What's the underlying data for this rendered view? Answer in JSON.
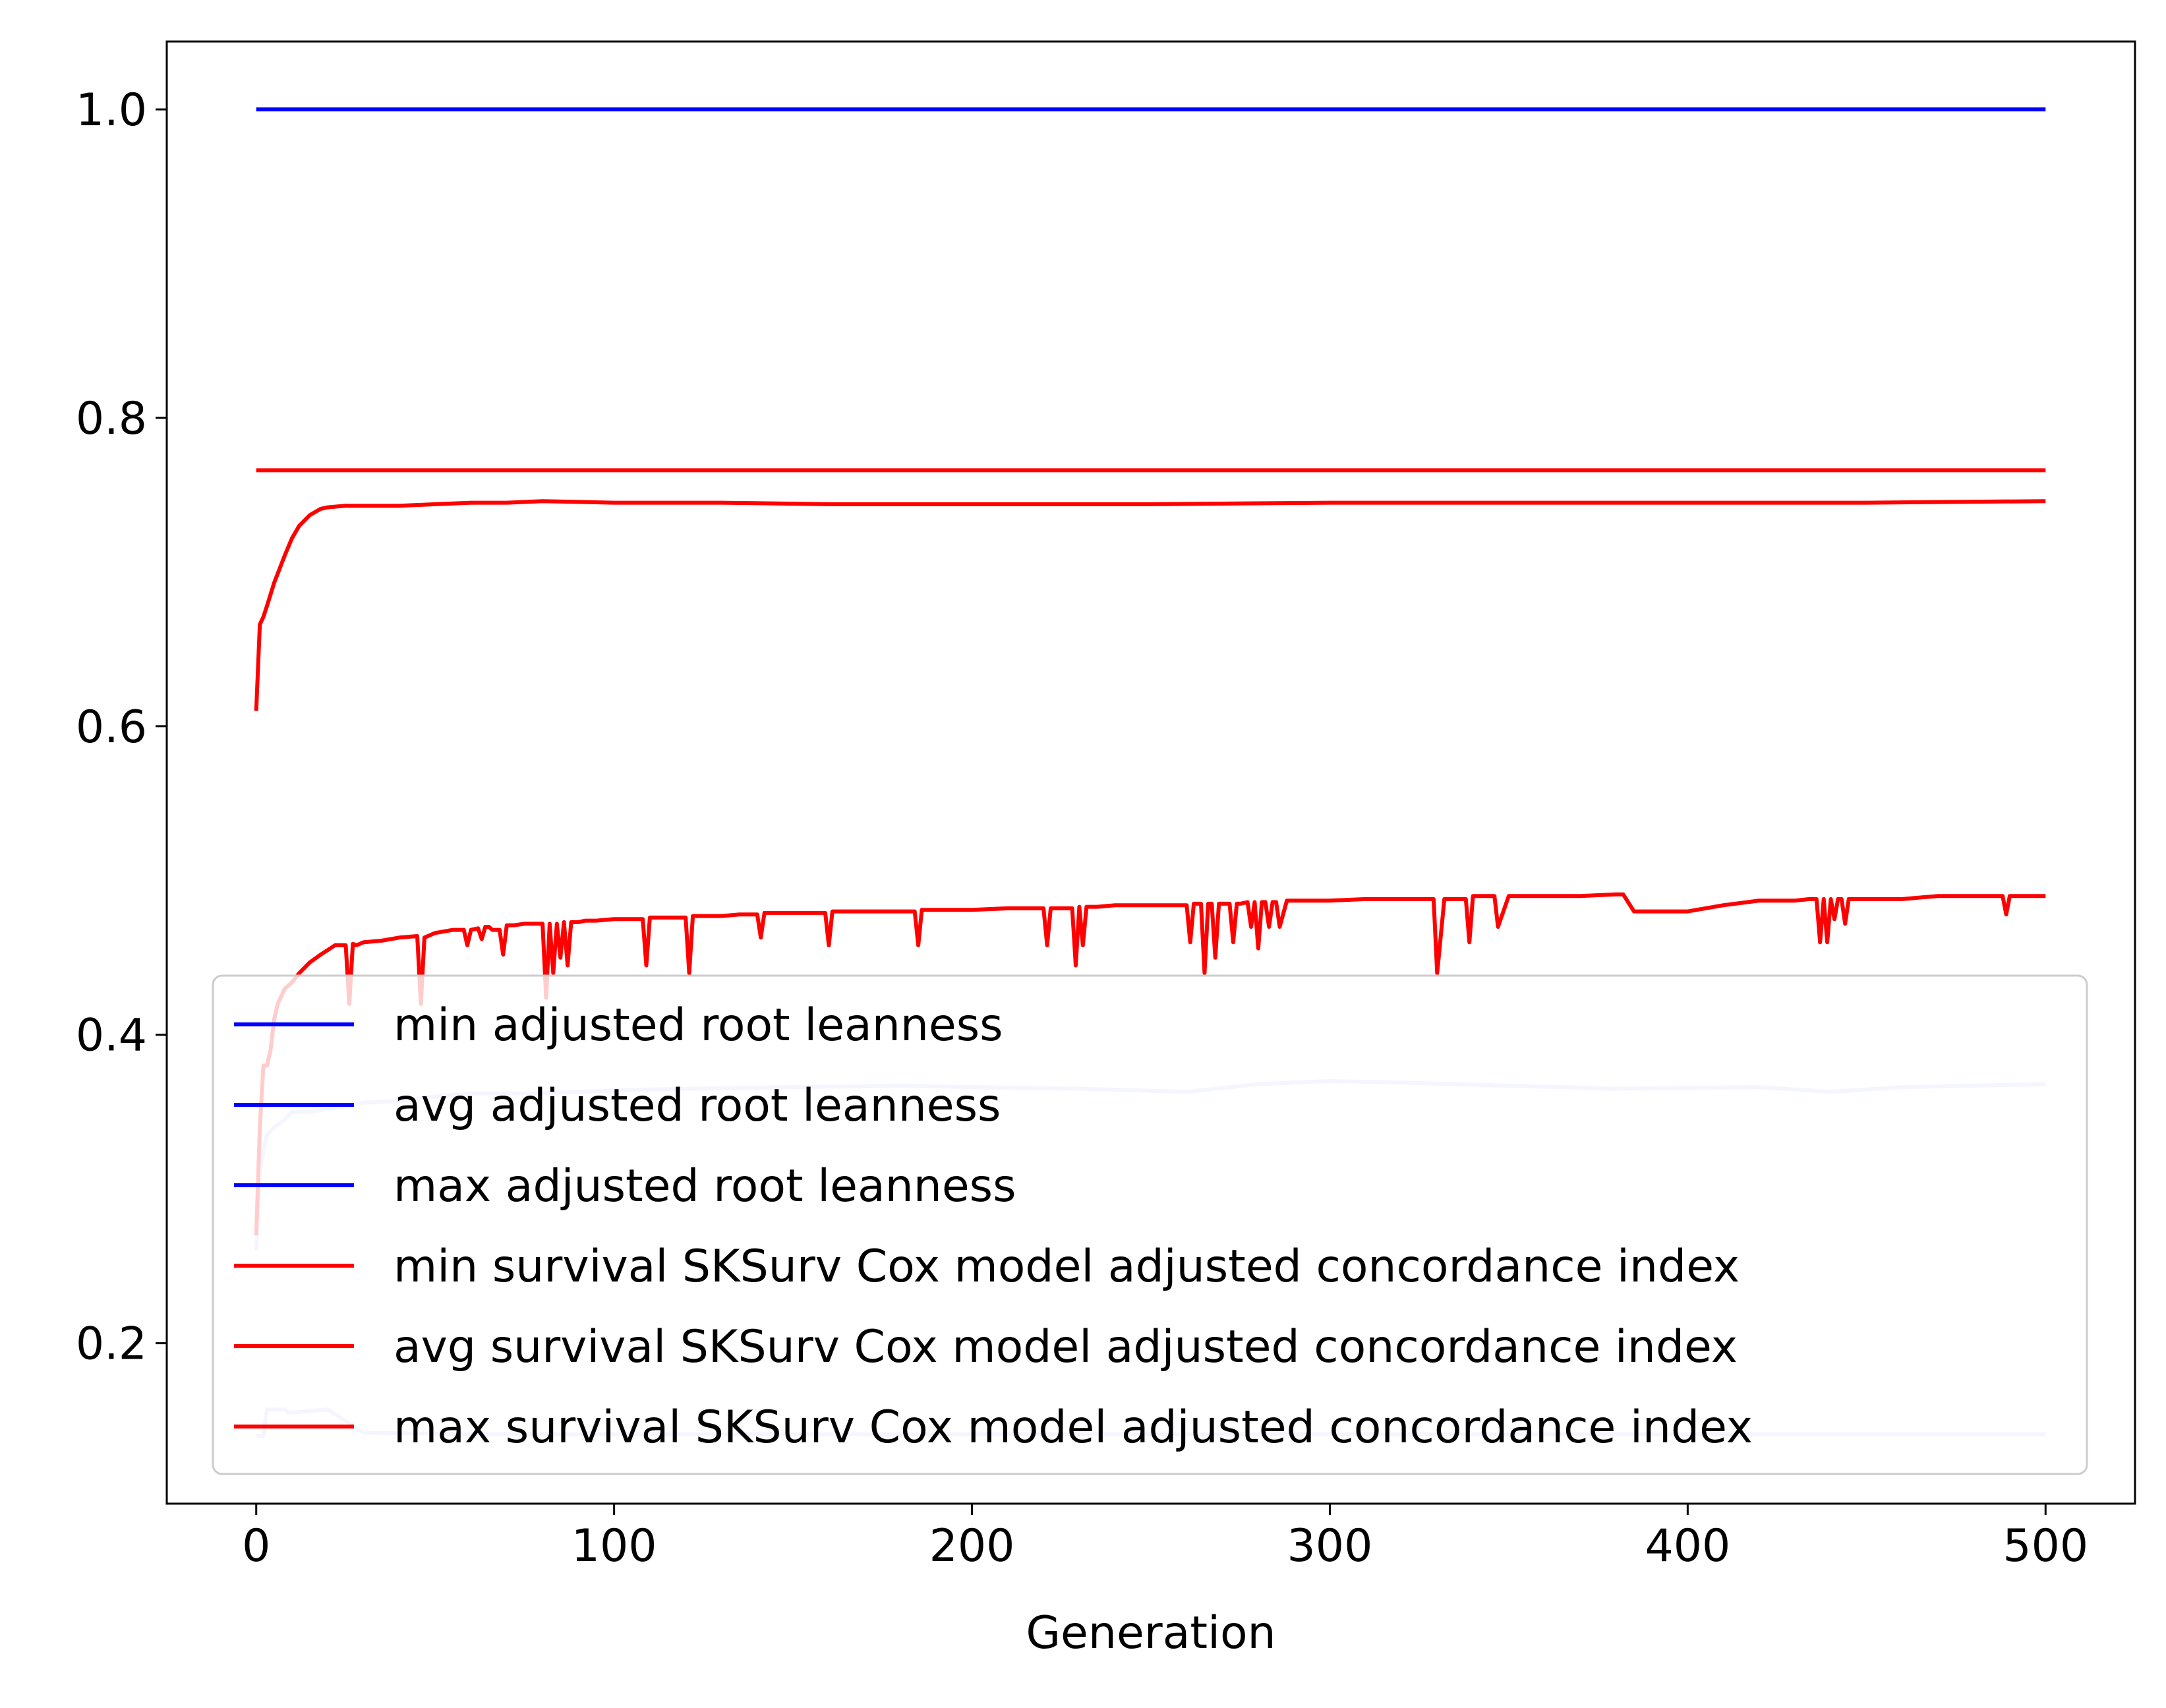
{
  "chart_data": {
    "type": "line",
    "title": "",
    "xlabel": "Generation",
    "ylabel": "",
    "xlim": [
      -25,
      525
    ],
    "ylim": [
      0.096,
      1.044
    ],
    "grid": false,
    "legend_position": "lower-left",
    "x_ticks": [
      0,
      100,
      200,
      300,
      400,
      500
    ],
    "x_tick_labels": [
      "0",
      "100",
      "200",
      "300",
      "400",
      "500"
    ],
    "y_ticks": [
      0.2,
      0.4,
      0.6,
      0.8,
      1.0
    ],
    "y_tick_labels": [
      "0.2",
      "0.4",
      "0.6",
      "0.8",
      "1.0"
    ],
    "series": [
      {
        "name": "min adjusted root leanness",
        "color": "#0000ff",
        "opacity": 0.2,
        "x": [
          0,
          2,
          3,
          8,
          9,
          20,
          30,
          60,
          100,
          200,
          300,
          400,
          500
        ],
        "y": [
          0.14,
          0.14,
          0.157,
          0.157,
          0.155,
          0.157,
          0.142,
          0.141,
          0.141,
          0.141,
          0.141,
          0.141,
          0.141
        ]
      },
      {
        "name": "avg adjusted root leanness",
        "color": "#0000ff",
        "opacity": 0.2,
        "x": [
          0,
          1,
          2,
          3,
          5,
          8,
          10,
          15,
          20,
          25,
          30,
          40,
          50,
          60,
          80,
          100,
          120,
          150,
          180,
          200,
          230,
          260,
          280,
          300,
          320,
          350,
          380,
          420,
          440,
          460,
          500
        ],
        "y": [
          0.26,
          0.31,
          0.325,
          0.335,
          0.34,
          0.345,
          0.35,
          0.35,
          0.352,
          0.354,
          0.356,
          0.357,
          0.36,
          0.362,
          0.362,
          0.364,
          0.365,
          0.366,
          0.367,
          0.366,
          0.365,
          0.363,
          0.368,
          0.37,
          0.369,
          0.367,
          0.365,
          0.366,
          0.363,
          0.366,
          0.368
        ]
      },
      {
        "name": "max adjusted root leanness",
        "color": "#0000ff",
        "opacity": 1,
        "x": [
          0,
          500
        ],
        "y": [
          1.0,
          1.0
        ]
      },
      {
        "name": "min survival SKSurv Cox model adjusted concordance index",
        "color": "#ff0000",
        "opacity": 1,
        "x": [
          0,
          1,
          2,
          3,
          4,
          5,
          6,
          8,
          10,
          12,
          15,
          18,
          20,
          22,
          25,
          26,
          27,
          28,
          30,
          35,
          40,
          45,
          46,
          47,
          48,
          50,
          55,
          58,
          59,
          60,
          62,
          63,
          64,
          65,
          66,
          68,
          69,
          70,
          72,
          75,
          78,
          80,
          81,
          82,
          83,
          84,
          85,
          86,
          87,
          88,
          90,
          92,
          95,
          100,
          105,
          108,
          109,
          110,
          112,
          115,
          118,
          120,
          121,
          122,
          123,
          125,
          130,
          135,
          138,
          140,
          141,
          142,
          143,
          145,
          150,
          155,
          159,
          160,
          161,
          165,
          170,
          180,
          184,
          185,
          186,
          190,
          200,
          210,
          220,
          221,
          222,
          223,
          225,
          228,
          229,
          230,
          231,
          232,
          233,
          235,
          240,
          250,
          260,
          261,
          262,
          263,
          264,
          265,
          266,
          267,
          268,
          269,
          270,
          272,
          273,
          274,
          275,
          277,
          278,
          279,
          280,
          281,
          282,
          283,
          284,
          285,
          286,
          288,
          290,
          300,
          310,
          320,
          328,
          329,
          330,
          332,
          335,
          338,
          339,
          340,
          342,
          345,
          346,
          347,
          350,
          360,
          370,
          380,
          381,
          382,
          385,
          390,
          395,
          400,
          410,
          420,
          430,
          434,
          435,
          436,
          437,
          438,
          439,
          440,
          441,
          442,
          443,
          444,
          445,
          450,
          455,
          460,
          470,
          480,
          487,
          488,
          489,
          490,
          495,
          500
        ],
        "y": [
          0.27,
          0.34,
          0.38,
          0.38,
          0.39,
          0.41,
          0.42,
          0.43,
          0.434,
          0.44,
          0.447,
          0.452,
          0.455,
          0.458,
          0.458,
          0.42,
          0.459,
          0.458,
          0.46,
          0.461,
          0.463,
          0.464,
          0.42,
          0.463,
          0.464,
          0.466,
          0.468,
          0.468,
          0.458,
          0.468,
          0.469,
          0.462,
          0.47,
          0.47,
          0.468,
          0.468,
          0.452,
          0.471,
          0.471,
          0.472,
          0.472,
          0.472,
          0.424,
          0.472,
          0.44,
          0.472,
          0.45,
          0.473,
          0.445,
          0.473,
          0.473,
          0.474,
          0.474,
          0.475,
          0.475,
          0.475,
          0.445,
          0.476,
          0.476,
          0.476,
          0.476,
          0.476,
          0.44,
          0.477,
          0.477,
          0.477,
          0.477,
          0.478,
          0.478,
          0.478,
          0.463,
          0.479,
          0.479,
          0.479,
          0.479,
          0.479,
          0.479,
          0.458,
          0.48,
          0.48,
          0.48,
          0.48,
          0.48,
          0.458,
          0.481,
          0.481,
          0.481,
          0.482,
          0.482,
          0.458,
          0.482,
          0.482,
          0.482,
          0.482,
          0.445,
          0.483,
          0.458,
          0.483,
          0.483,
          0.483,
          0.484,
          0.484,
          0.484,
          0.46,
          0.485,
          0.485,
          0.485,
          0.44,
          0.485,
          0.485,
          0.45,
          0.485,
          0.485,
          0.485,
          0.46,
          0.485,
          0.485,
          0.486,
          0.47,
          0.486,
          0.456,
          0.486,
          0.486,
          0.47,
          0.486,
          0.486,
          0.47,
          0.487,
          0.487,
          0.487,
          0.488,
          0.488,
          0.488,
          0.488,
          0.44,
          0.488,
          0.488,
          0.488,
          0.46,
          0.49,
          0.49,
          0.49,
          0.49,
          0.47,
          0.49,
          0.49,
          0.49,
          0.491,
          0.491,
          0.491,
          0.48,
          0.48,
          0.48,
          0.48,
          0.484,
          0.487,
          0.487,
          0.488,
          0.488,
          0.488,
          0.46,
          0.488,
          0.46,
          0.488,
          0.475,
          0.488,
          0.488,
          0.472,
          0.488,
          0.488,
          0.488,
          0.488,
          0.49,
          0.49,
          0.49,
          0.49,
          0.478,
          0.49,
          0.49,
          0.49
        ]
      },
      {
        "name": "avg survival SKSurv Cox model adjusted concordance index",
        "color": "#ff0000",
        "opacity": 1,
        "x": [
          0,
          1,
          2,
          3,
          5,
          8,
          10,
          12,
          15,
          18,
          20,
          25,
          30,
          40,
          50,
          60,
          70,
          80,
          100,
          130,
          160,
          200,
          250,
          300,
          350,
          400,
          450,
          500
        ],
        "y": [
          0.61,
          0.666,
          0.671,
          0.678,
          0.693,
          0.711,
          0.722,
          0.73,
          0.737,
          0.741,
          0.742,
          0.743,
          0.743,
          0.743,
          0.744,
          0.745,
          0.745,
          0.746,
          0.745,
          0.745,
          0.744,
          0.744,
          0.744,
          0.745,
          0.745,
          0.745,
          0.745,
          0.746
        ]
      },
      {
        "name": "max survival SKSurv Cox model adjusted concordance index",
        "color": "#ff0000",
        "opacity": 1,
        "x": [
          0,
          500
        ],
        "y": [
          0.766,
          0.766
        ]
      }
    ]
  }
}
